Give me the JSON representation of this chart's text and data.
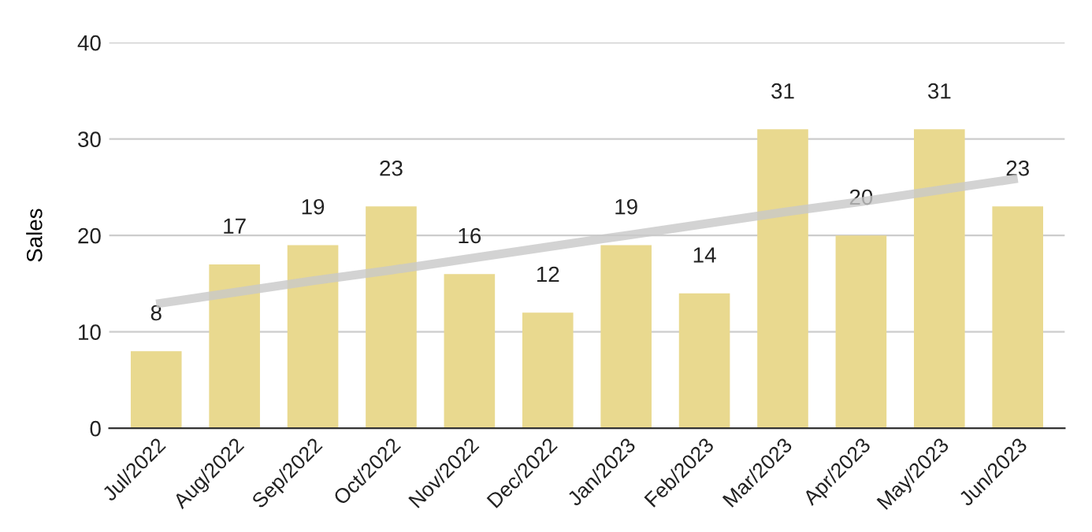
{
  "chart_data": {
    "type": "bar",
    "ylabel": "Sales",
    "categories": [
      "Jul/2022",
      "Aug/2022",
      "Sep/2022",
      "Oct/2022",
      "Nov/2022",
      "Dec/2022",
      "Jan/2023",
      "Feb/2023",
      "Mar/2023",
      "Apr/2023",
      "May/2023",
      "Jun/2023"
    ],
    "series": [
      {
        "color": "#e9d98f",
        "values": [
          8,
          17,
          19,
          23,
          16,
          12,
          19,
          14,
          31,
          20,
          31,
          23
        ],
        "value_labels": [
          "8",
          "17",
          "19",
          "23",
          "16",
          "12",
          "19",
          "14",
          "31",
          "20",
          "31",
          "23"
        ]
      },
      {
        "type": "line",
        "color": "#c8c8c8",
        "values": [
          12.9,
          14.1,
          15.3,
          16.4,
          17.6,
          18.8,
          20.0,
          21.2,
          22.4,
          23.5,
          24.7,
          25.9
        ]
      }
    ],
    "ylim": [
      0,
      40
    ],
    "yticks": [
      0,
      10,
      20,
      30,
      40
    ],
    "grid": "y",
    "legend": false
  }
}
